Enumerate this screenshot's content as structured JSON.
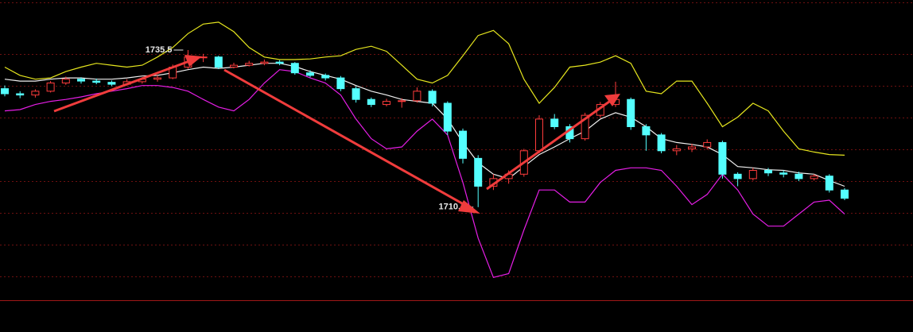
{
  "chart_data": {
    "type": "candlestick",
    "ylim": [
      1696,
      1743.4
    ],
    "up_color": "#ff3c3c",
    "down_color": "#54ffff",
    "ohlc": [
      [
        1729.4,
        1729.9,
        1728.2,
        1728.6
      ],
      [
        1728.6,
        1729.0,
        1727.9,
        1728.4
      ],
      [
        1728.4,
        1729.3,
        1728.0,
        1729.0
      ],
      [
        1729.0,
        1730.6,
        1728.8,
        1730.3
      ],
      [
        1730.3,
        1731.3,
        1730.0,
        1730.9
      ],
      [
        1730.9,
        1731.2,
        1730.2,
        1730.6
      ],
      [
        1730.6,
        1731.0,
        1730.1,
        1730.4
      ],
      [
        1730.4,
        1730.7,
        1729.8,
        1730.1
      ],
      [
        1730.1,
        1730.9,
        1729.9,
        1730.5
      ],
      [
        1730.5,
        1731.2,
        1730.2,
        1730.9
      ],
      [
        1730.9,
        1731.5,
        1730.5,
        1731.1
      ],
      [
        1731.1,
        1733.2,
        1730.9,
        1732.8
      ],
      [
        1732.8,
        1735.5,
        1732.5,
        1734.4
      ],
      [
        1734.4,
        1734.9,
        1733.6,
        1734.4
      ],
      [
        1734.4,
        1734.6,
        1732.5,
        1732.8
      ],
      [
        1732.8,
        1733.5,
        1732.6,
        1733.1
      ],
      [
        1733.1,
        1733.8,
        1732.9,
        1733.4
      ],
      [
        1733.4,
        1734.0,
        1733.1,
        1733.6
      ],
      [
        1733.6,
        1733.9,
        1733.1,
        1733.4
      ],
      [
        1733.4,
        1733.6,
        1731.6,
        1731.9
      ],
      [
        1731.9,
        1732.3,
        1731.2,
        1731.5
      ],
      [
        1731.5,
        1731.8,
        1730.7,
        1731.1
      ],
      [
        1731.1,
        1731.4,
        1729.0,
        1729.4
      ],
      [
        1729.4,
        1729.8,
        1727.2,
        1727.7
      ],
      [
        1727.7,
        1728.0,
        1726.5,
        1726.9
      ],
      [
        1726.9,
        1727.8,
        1726.6,
        1727.4
      ],
      [
        1727.4,
        1727.9,
        1726.4,
        1727.5
      ],
      [
        1727.5,
        1729.6,
        1727.2,
        1729.0
      ],
      [
        1729.0,
        1729.3,
        1726.6,
        1727.1
      ],
      [
        1727.1,
        1727.4,
        1722.1,
        1722.7
      ],
      [
        1722.7,
        1723.1,
        1717.6,
        1718.4
      ],
      [
        1718.4,
        1718.9,
        1710.7,
        1714.0
      ],
      [
        1714.0,
        1715.9,
        1713.4,
        1715.2
      ],
      [
        1715.2,
        1716.5,
        1714.4,
        1715.9
      ],
      [
        1715.9,
        1719.9,
        1715.5,
        1719.6
      ],
      [
        1719.6,
        1725.2,
        1719.2,
        1724.6
      ],
      [
        1724.6,
        1725.4,
        1723.0,
        1723.4
      ],
      [
        1723.4,
        1723.8,
        1720.9,
        1721.5
      ],
      [
        1721.5,
        1725.6,
        1721.2,
        1725.2
      ],
      [
        1725.2,
        1727.3,
        1724.8,
        1726.9
      ],
      [
        1726.9,
        1730.5,
        1726.5,
        1727.7
      ],
      [
        1727.7,
        1728.0,
        1722.9,
        1723.4
      ],
      [
        1723.4,
        1723.8,
        1719.6,
        1722.1
      ],
      [
        1722.1,
        1722.4,
        1719.2,
        1719.6
      ],
      [
        1719.6,
        1720.5,
        1718.9,
        1719.9
      ],
      [
        1719.9,
        1720.7,
        1719.4,
        1720.2
      ],
      [
        1720.2,
        1721.4,
        1719.8,
        1720.9
      ],
      [
        1720.9,
        1721.2,
        1715.2,
        1715.9
      ],
      [
        1715.9,
        1716.2,
        1714.0,
        1715.2
      ],
      [
        1715.2,
        1716.9,
        1714.9,
        1716.5
      ],
      [
        1716.5,
        1716.9,
        1715.6,
        1716.1
      ],
      [
        1716.1,
        1716.5,
        1715.4,
        1715.9
      ],
      [
        1715.9,
        1716.3,
        1714.8,
        1715.2
      ],
      [
        1715.2,
        1715.9,
        1714.9,
        1715.6
      ],
      [
        1715.6,
        1715.9,
        1713.0,
        1713.4
      ],
      [
        1713.4,
        1713.7,
        1711.8,
        1712.1
      ]
    ],
    "series": [
      {
        "color": "#e6e61e",
        "values": [
          1732.8,
          1731.5,
          1730.9,
          1731.1,
          1732.1,
          1732.8,
          1733.4,
          1733.1,
          1732.8,
          1733.1,
          1734.4,
          1735.9,
          1738.1,
          1739.6,
          1739.9,
          1738.4,
          1735.9,
          1734.4,
          1734.0,
          1734.0,
          1734.1,
          1734.4,
          1734.6,
          1735.6,
          1736.1,
          1735.3,
          1733.1,
          1730.9,
          1730.3,
          1731.5,
          1734.6,
          1737.8,
          1738.6,
          1736.5,
          1730.9,
          1727.1,
          1729.6,
          1732.8,
          1733.1,
          1733.6,
          1734.6,
          1733.4,
          1729.0,
          1728.6,
          1730.6,
          1730.6,
          1727.1,
          1723.4,
          1724.9,
          1727.1,
          1725.9,
          1722.7,
          1719.9,
          1719.4,
          1719.0,
          1718.9
        ]
      },
      {
        "color": "#f0f0f0",
        "values": [
          1730.9,
          1730.6,
          1730.6,
          1730.9,
          1731.1,
          1731.1,
          1730.9,
          1730.9,
          1731.1,
          1731.4,
          1731.5,
          1731.9,
          1732.4,
          1732.8,
          1732.6,
          1732.8,
          1733.1,
          1733.4,
          1733.4,
          1732.9,
          1732.1,
          1731.5,
          1730.9,
          1729.9,
          1729.0,
          1728.4,
          1727.7,
          1727.4,
          1727.1,
          1724.6,
          1720.9,
          1717.7,
          1715.9,
          1715.2,
          1717.1,
          1719.0,
          1720.2,
          1721.5,
          1722.7,
          1724.6,
          1725.6,
          1724.9,
          1723.4,
          1721.5,
          1720.9,
          1720.6,
          1720.2,
          1719.0,
          1717.1,
          1716.9,
          1716.6,
          1716.5,
          1716.1,
          1715.9,
          1714.9,
          1714.0
        ]
      },
      {
        "color": "#e61ee6",
        "values": [
          1725.9,
          1726.1,
          1726.9,
          1727.4,
          1727.7,
          1728.1,
          1728.6,
          1729.0,
          1729.4,
          1729.9,
          1729.9,
          1729.6,
          1729.0,
          1727.7,
          1726.5,
          1725.9,
          1727.7,
          1730.3,
          1732.4,
          1732.1,
          1731.1,
          1730.3,
          1728.4,
          1724.6,
          1721.5,
          1719.9,
          1720.2,
          1722.7,
          1724.6,
          1722.1,
          1714.6,
          1705.8,
          1699.6,
          1700.2,
          1707.1,
          1713.4,
          1713.4,
          1711.5,
          1711.5,
          1714.6,
          1716.5,
          1716.9,
          1716.9,
          1716.5,
          1714.0,
          1711.1,
          1712.7,
          1715.9,
          1713.4,
          1709.6,
          1707.7,
          1707.7,
          1709.6,
          1711.5,
          1711.8,
          1709.6
        ]
      }
    ]
  }
}
